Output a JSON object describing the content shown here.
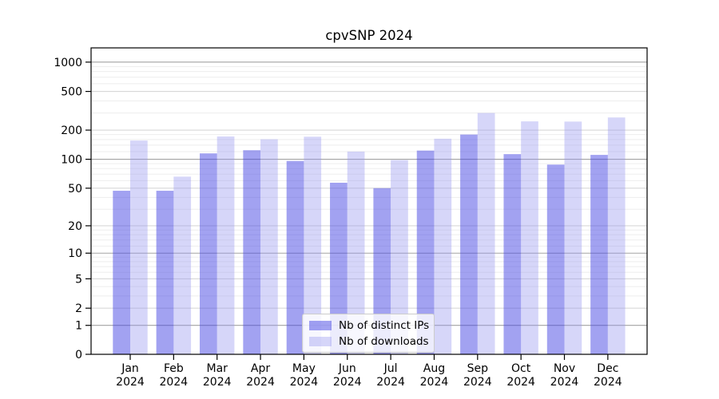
{
  "title": "cpvSNP 2024",
  "legend": {
    "items": [
      {
        "label": "Nb of distinct IPs",
        "color": "rgba(70,70,228,0.50)"
      },
      {
        "label": "Nb of downloads",
        "color": "rgba(148,148,240,0.38)"
      }
    ]
  },
  "chart_data": {
    "type": "bar",
    "title": "cpvSNP 2024",
    "categories": [
      "Jan 2024",
      "Feb 2024",
      "Mar 2024",
      "Apr 2024",
      "May 2024",
      "Jun 2024",
      "Jul 2024",
      "Aug 2024",
      "Sep 2024",
      "Oct 2024",
      "Nov 2024",
      "Dec 2024"
    ],
    "series": [
      {
        "name": "Nb of distinct IPs",
        "color": "rgba(70,70,228,0.50)",
        "values": [
          47,
          47,
          115,
          124,
          96,
          57,
          50,
          123,
          180,
          113,
          88,
          111
        ]
      },
      {
        "name": "Nb of downloads",
        "color": "rgba(148,148,240,0.38)",
        "values": [
          156,
          66,
          172,
          161,
          171,
          120,
          98,
          163,
          300,
          246,
          245,
          270
        ]
      }
    ],
    "xlabel": "",
    "ylabel": "",
    "y_scale": "log10(value+1)",
    "y_ticks": [
      0,
      1,
      2,
      5,
      10,
      20,
      50,
      100,
      200,
      500,
      1000
    ],
    "y_minor_gridlines": [
      3,
      4,
      6,
      7,
      8,
      9,
      12,
      14,
      16,
      18,
      30,
      40,
      60,
      70,
      80,
      90,
      120,
      140,
      160,
      180,
      300,
      400,
      600,
      700,
      800,
      900
    ],
    "ylim": [
      0,
      1412
    ],
    "grid": "on",
    "legend_position": "lower center",
    "colors": {
      "grid_minor": "#ededed",
      "grid_major": "#d8d8d8",
      "grid_power10": "#a3a3a3",
      "spine": "#000000",
      "tick_label": "#000000"
    }
  }
}
